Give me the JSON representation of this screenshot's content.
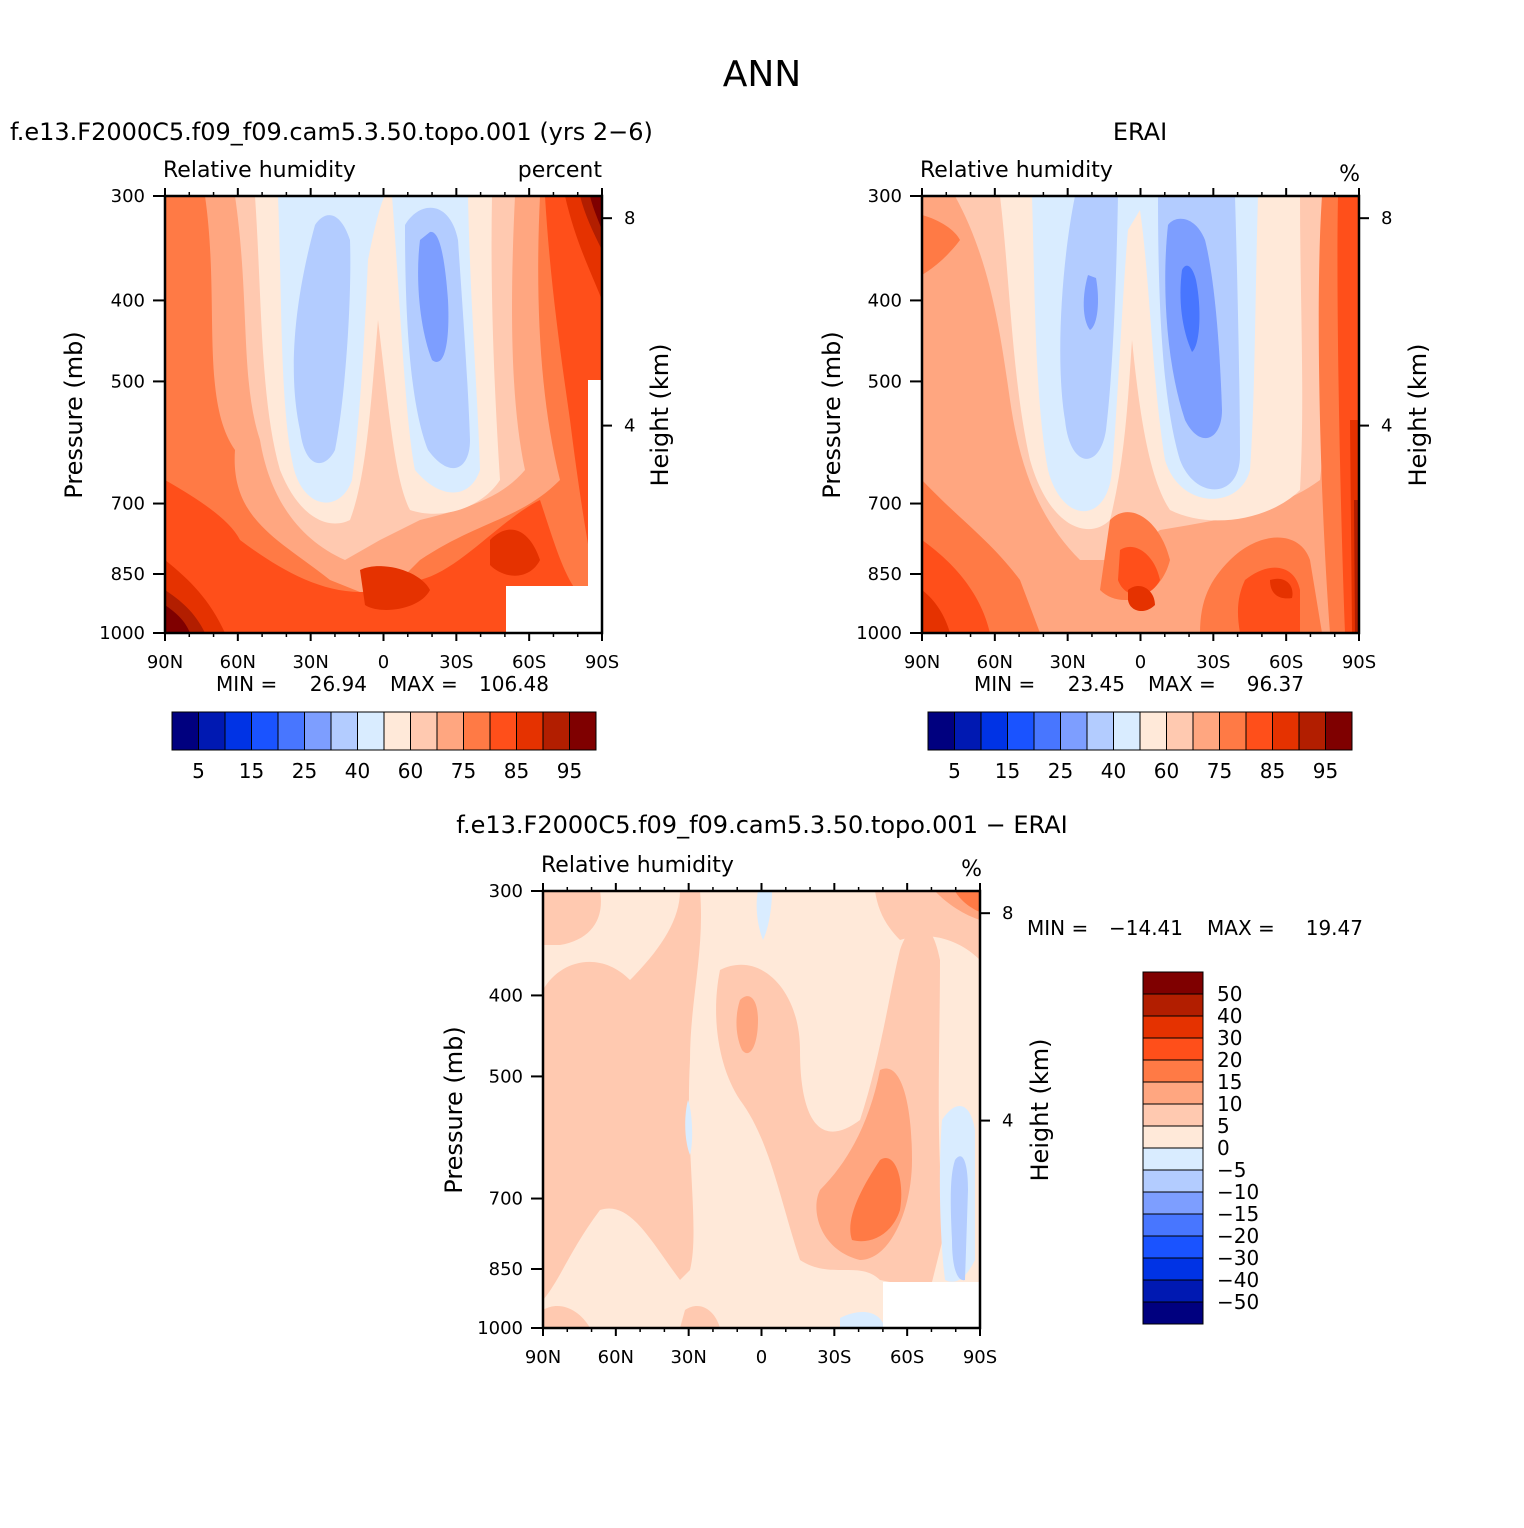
{
  "page_title": "ANN",
  "chart_data": [
    {
      "type": "heatmap",
      "id": "model",
      "title": "f.e13.F2000C5.f09_f09.cam5.3.50.topo.001 (yrs 2−6)",
      "left_label": "Relative humidity",
      "right_label": "percent",
      "xlabel": "",
      "ylabel": "Pressure (mb)",
      "y2label": "Height (km)",
      "x_ticks": [
        "90N",
        "60N",
        "30N",
        "0",
        "30S",
        "60S",
        "90S"
      ],
      "y_ticks": [
        300,
        400,
        500,
        700,
        850,
        1000
      ],
      "y2_ticks": [
        "8",
        "4"
      ],
      "ylim": [
        1000,
        300
      ],
      "min_label": "MIN =",
      "min_value": "26.94",
      "max_label": "MAX =",
      "max_value": "106.48",
      "colorbar": {
        "orientation": "horizontal",
        "colors": [
          "#00007f",
          "#0019b2",
          "#0033e5",
          "#1a53ff",
          "#4876ff",
          "#7d9eff",
          "#b3ccff",
          "#d9ecff",
          "#ffe9d9",
          "#ffc9b0",
          "#ffa680",
          "#ff7a45",
          "#ff4f1a",
          "#e53200",
          "#b21e00",
          "#7f0000"
        ],
        "labels": [
          "5",
          "15",
          "25",
          "40",
          "60",
          "75",
          "85",
          "95"
        ]
      }
    },
    {
      "type": "heatmap",
      "id": "obs",
      "title": "ERAI",
      "left_label": "Relative humidity",
      "right_label": "%",
      "xlabel": "",
      "ylabel": "Pressure (mb)",
      "y2label": "Height (km)",
      "x_ticks": [
        "90N",
        "60N",
        "30N",
        "0",
        "30S",
        "60S",
        "90S"
      ],
      "y_ticks": [
        300,
        400,
        500,
        700,
        850,
        1000
      ],
      "y2_ticks": [
        "8",
        "4"
      ],
      "ylim": [
        1000,
        300
      ],
      "min_label": "MIN =",
      "min_value": "23.45",
      "max_label": "MAX =",
      "max_value": "96.37",
      "colorbar": {
        "orientation": "horizontal",
        "colors": [
          "#00007f",
          "#0019b2",
          "#0033e5",
          "#1a53ff",
          "#4876ff",
          "#7d9eff",
          "#b3ccff",
          "#d9ecff",
          "#ffe9d9",
          "#ffc9b0",
          "#ffa680",
          "#ff7a45",
          "#ff4f1a",
          "#e53200",
          "#b21e00",
          "#7f0000"
        ],
        "labels": [
          "5",
          "15",
          "25",
          "40",
          "60",
          "75",
          "85",
          "95"
        ]
      }
    },
    {
      "type": "heatmap",
      "id": "diff",
      "title": "f.e13.F2000C5.f09_f09.cam5.3.50.topo.001 − ERAI",
      "left_label": "Relative humidity",
      "right_label": "%",
      "xlabel": "",
      "ylabel": "Pressure (mb)",
      "y2label": "Height (km)",
      "x_ticks": [
        "90N",
        "60N",
        "30N",
        "0",
        "30S",
        "60S",
        "90S"
      ],
      "y_ticks": [
        300,
        400,
        500,
        700,
        850,
        1000
      ],
      "y2_ticks": [
        "8",
        "4"
      ],
      "ylim": [
        1000,
        300
      ],
      "min_label": "MIN =",
      "min_value": "−14.41",
      "max_label": "MAX =",
      "max_value": "19.47",
      "colorbar": {
        "orientation": "vertical",
        "colors": [
          "#7f0000",
          "#b21e00",
          "#e53200",
          "#ff4f1a",
          "#ff7a45",
          "#ffa680",
          "#ffc9b0",
          "#ffe9d9",
          "#d9ecff",
          "#b3ccff",
          "#7d9eff",
          "#4876ff",
          "#1a53ff",
          "#0033e5",
          "#0019b2",
          "#00007f"
        ],
        "labels": [
          "50",
          "40",
          "30",
          "20",
          "15",
          "10",
          "5",
          "0",
          "−5",
          "−10",
          "−15",
          "−20",
          "−30",
          "−40",
          "−50"
        ]
      }
    }
  ]
}
